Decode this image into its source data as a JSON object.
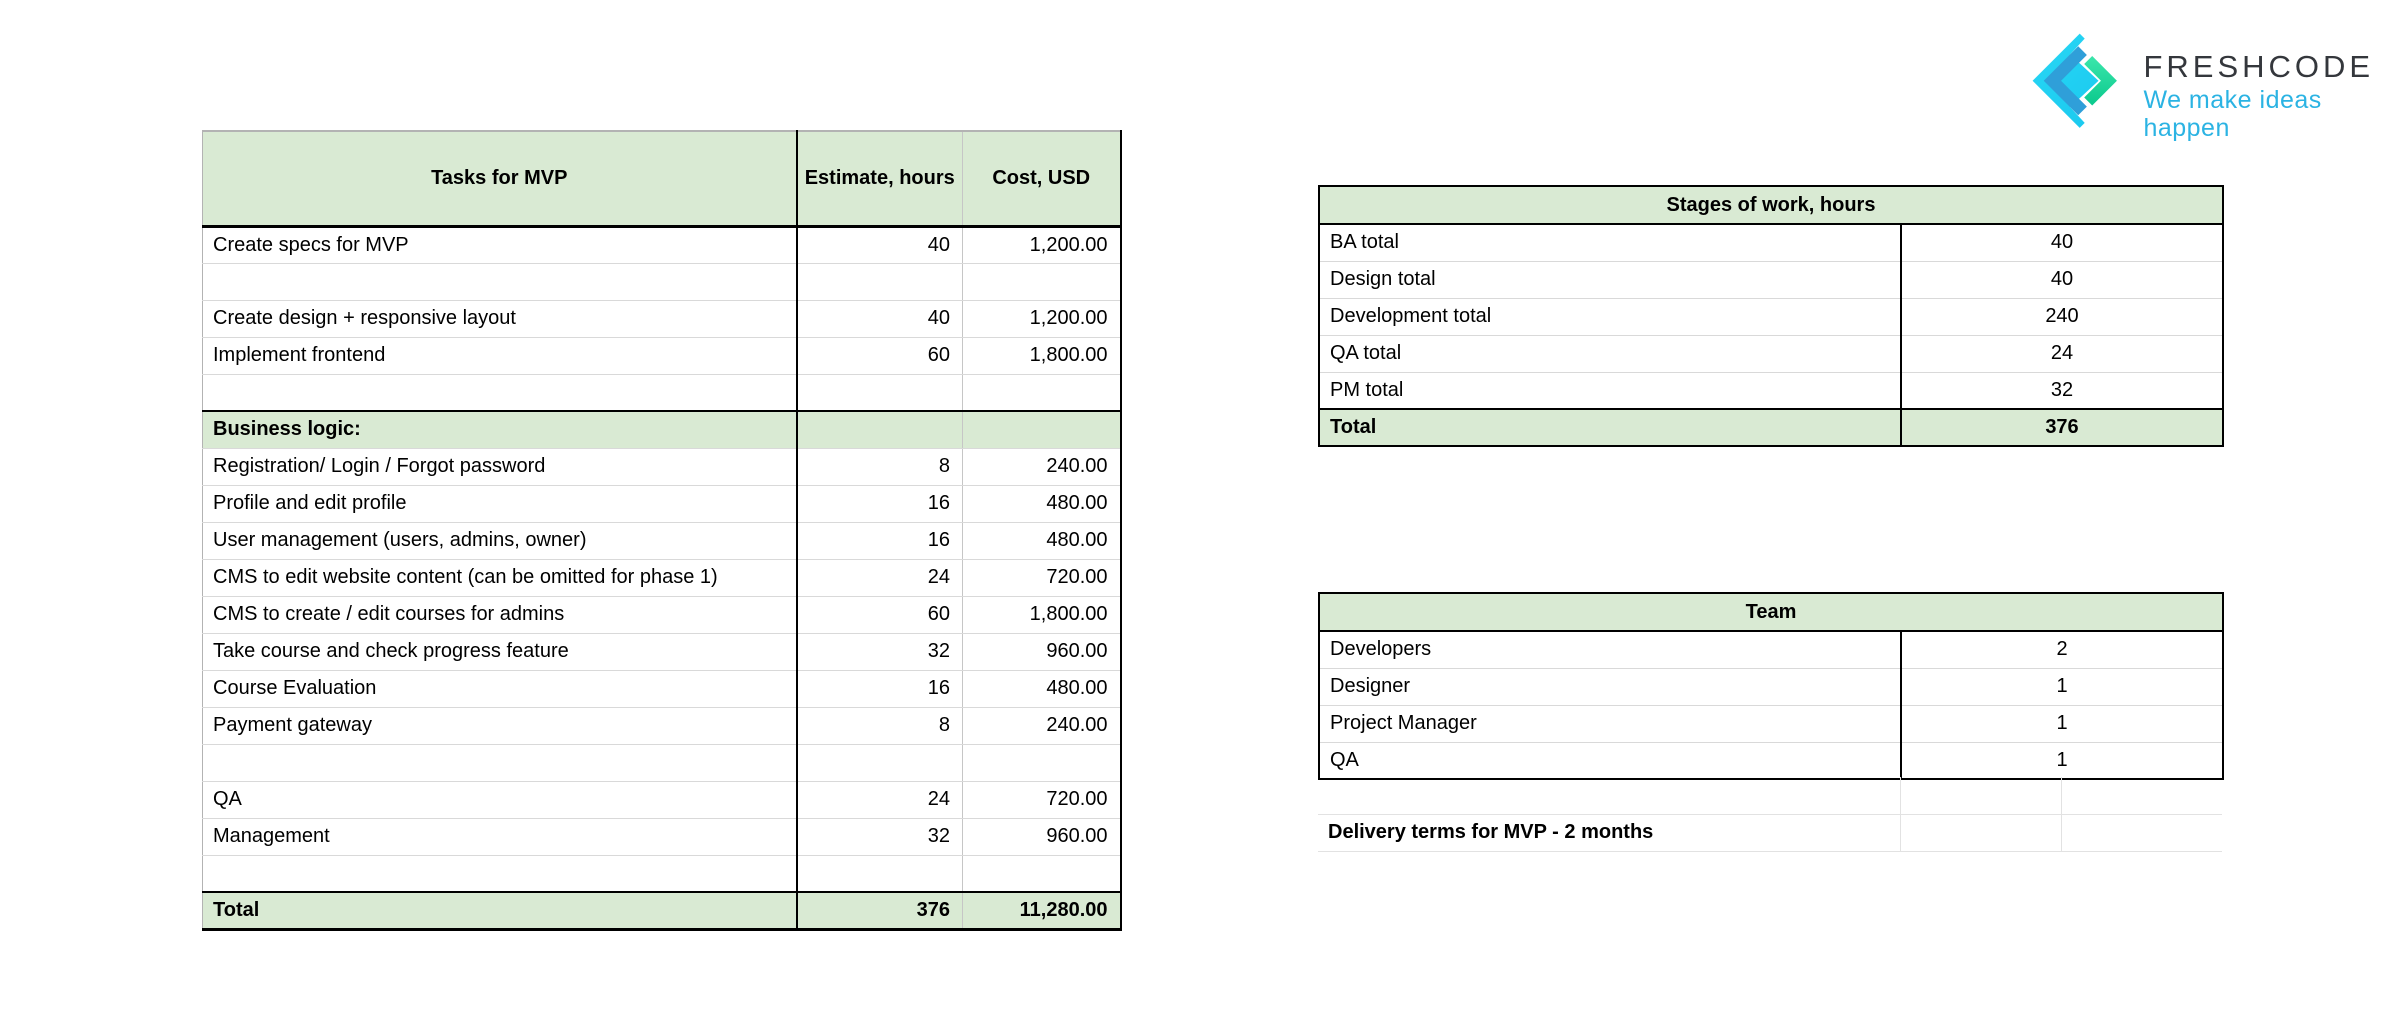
{
  "logo": {
    "name": "FRESHCODE",
    "tagline": "We make ideas happen",
    "colors": {
      "mark_cyan": "#28d7f5",
      "mark_cyan_dark": "#18c6ee",
      "mark_blue": "#2f9fd9",
      "mark_green_light": "#38e4a9",
      "mark_green_dark": "#0ecb8f",
      "name_text": "#34373c",
      "tagline_text": "#2bb3e3"
    }
  },
  "colors": {
    "header_green": "#d9ead3",
    "row_separator": "#d9d9d9",
    "column_separator_gray": "#c6c6c6",
    "outer_border_gray": "#b3b3b3",
    "border_black": "#000000",
    "faint_grid": "#e2e2e2"
  },
  "tasks_table": {
    "headers": [
      "Tasks for MVP",
      "Estimate, hours",
      "Cost, USD"
    ],
    "rows": [
      {
        "task": "Create specs for MVP",
        "hours": "40",
        "cost": "1,200.00",
        "type": "normal"
      },
      {
        "task": "",
        "hours": "",
        "cost": "",
        "type": "empty"
      },
      {
        "task": "Create design + responsive layout",
        "hours": "40",
        "cost": "1,200.00",
        "type": "normal"
      },
      {
        "task": "Implement frontend",
        "hours": "60",
        "cost": "1,800.00",
        "type": "normal"
      },
      {
        "task": "",
        "hours": "",
        "cost": "",
        "type": "empty"
      },
      {
        "task": "Business logic:",
        "hours": "",
        "cost": "",
        "type": "section"
      },
      {
        "task": "Registration/ Login / Forgot password",
        "hours": "8",
        "cost": "240.00",
        "type": "normal"
      },
      {
        "task": "Profile and edit profile",
        "hours": "16",
        "cost": "480.00",
        "type": "normal"
      },
      {
        "task": "User management (users, admins, owner)",
        "hours": "16",
        "cost": "480.00",
        "type": "normal"
      },
      {
        "task": "CMS to edit website content (can be omitted for phase 1)",
        "hours": "24",
        "cost": "720.00",
        "type": "normal"
      },
      {
        "task": "CMS to create / edit courses for admins",
        "hours": "60",
        "cost": "1,800.00",
        "type": "normal"
      },
      {
        "task": "Take course and check progress feature",
        "hours": "32",
        "cost": "960.00",
        "type": "normal"
      },
      {
        "task": "Course Evaluation",
        "hours": "16",
        "cost": "480.00",
        "type": "normal"
      },
      {
        "task": "Payment gateway",
        "hours": "8",
        "cost": "240.00",
        "type": "normal"
      },
      {
        "task": "",
        "hours": "",
        "cost": "",
        "type": "empty"
      },
      {
        "task": "QA",
        "hours": "24",
        "cost": "720.00",
        "type": "normal"
      },
      {
        "task": "Management",
        "hours": "32",
        "cost": "960.00",
        "type": "normal"
      },
      {
        "task": "",
        "hours": "",
        "cost": "",
        "type": "empty"
      },
      {
        "task": "Total",
        "hours": "376",
        "cost": "11,280.00",
        "type": "total"
      }
    ]
  },
  "stages_table": {
    "title": "Stages of work, hours",
    "rows": [
      {
        "label": "BA total",
        "value": "40",
        "type": "normal"
      },
      {
        "label": "Design total",
        "value": "40",
        "type": "normal"
      },
      {
        "label": "Development total",
        "value": "240",
        "type": "normal"
      },
      {
        "label": "QA total",
        "value": "24",
        "type": "normal"
      },
      {
        "label": "PM total",
        "value": "32",
        "type": "normal"
      },
      {
        "label": "Total",
        "value": "376",
        "type": "total"
      }
    ]
  },
  "team_table": {
    "title": "Team",
    "rows": [
      {
        "label": "Developers",
        "value": "2",
        "type": "normal"
      },
      {
        "label": "Designer",
        "value": "1",
        "type": "normal"
      },
      {
        "label": "Project Manager",
        "value": "1",
        "type": "normal"
      },
      {
        "label": "QA",
        "value": "1",
        "type": "normal"
      }
    ]
  },
  "footnote": {
    "delivery_terms": "Delivery terms for MVP - 2 months"
  }
}
